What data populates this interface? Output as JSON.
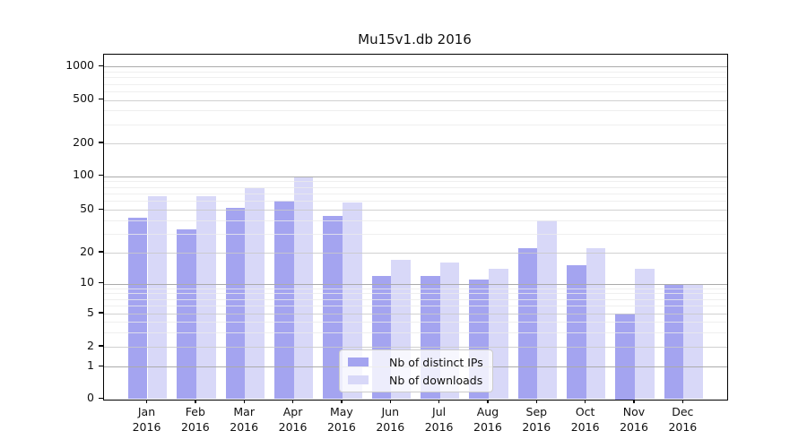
{
  "title": "Mu15v1.db 2016",
  "chart_data": {
    "type": "bar",
    "title": "Mu15v1.db 2016",
    "yscale": "symlog",
    "ylim": [
      0,
      1300
    ],
    "yticks": [
      0,
      1,
      2,
      5,
      10,
      20,
      50,
      100,
      200,
      500,
      1000
    ],
    "grid": true,
    "legend_position": "lower center",
    "year": "2016",
    "months": [
      "Jan",
      "Feb",
      "Mar",
      "Apr",
      "May",
      "Jun",
      "Jul",
      "Aug",
      "Sep",
      "Oct",
      "Nov",
      "Dec"
    ],
    "series": [
      {
        "name": "Nb of distinct IPs",
        "color": "#a4a4f0",
        "values": [
          42,
          33,
          52,
          60,
          44,
          12,
          12,
          11,
          22,
          15,
          5,
          10
        ]
      },
      {
        "name": "Nb of downloads",
        "color": "#d8d8f8",
        "values": [
          66,
          66,
          78,
          100,
          58,
          17,
          16,
          14,
          40,
          22,
          14,
          10
        ]
      }
    ]
  },
  "colors": {
    "background": "#ffffff",
    "axis": "#000000",
    "grid_major": "#ababab",
    "grid_mid": "#c9c9c9",
    "grid_minor": "#ebebeb",
    "text": "#111111",
    "legend_border": "#cccccc"
  }
}
